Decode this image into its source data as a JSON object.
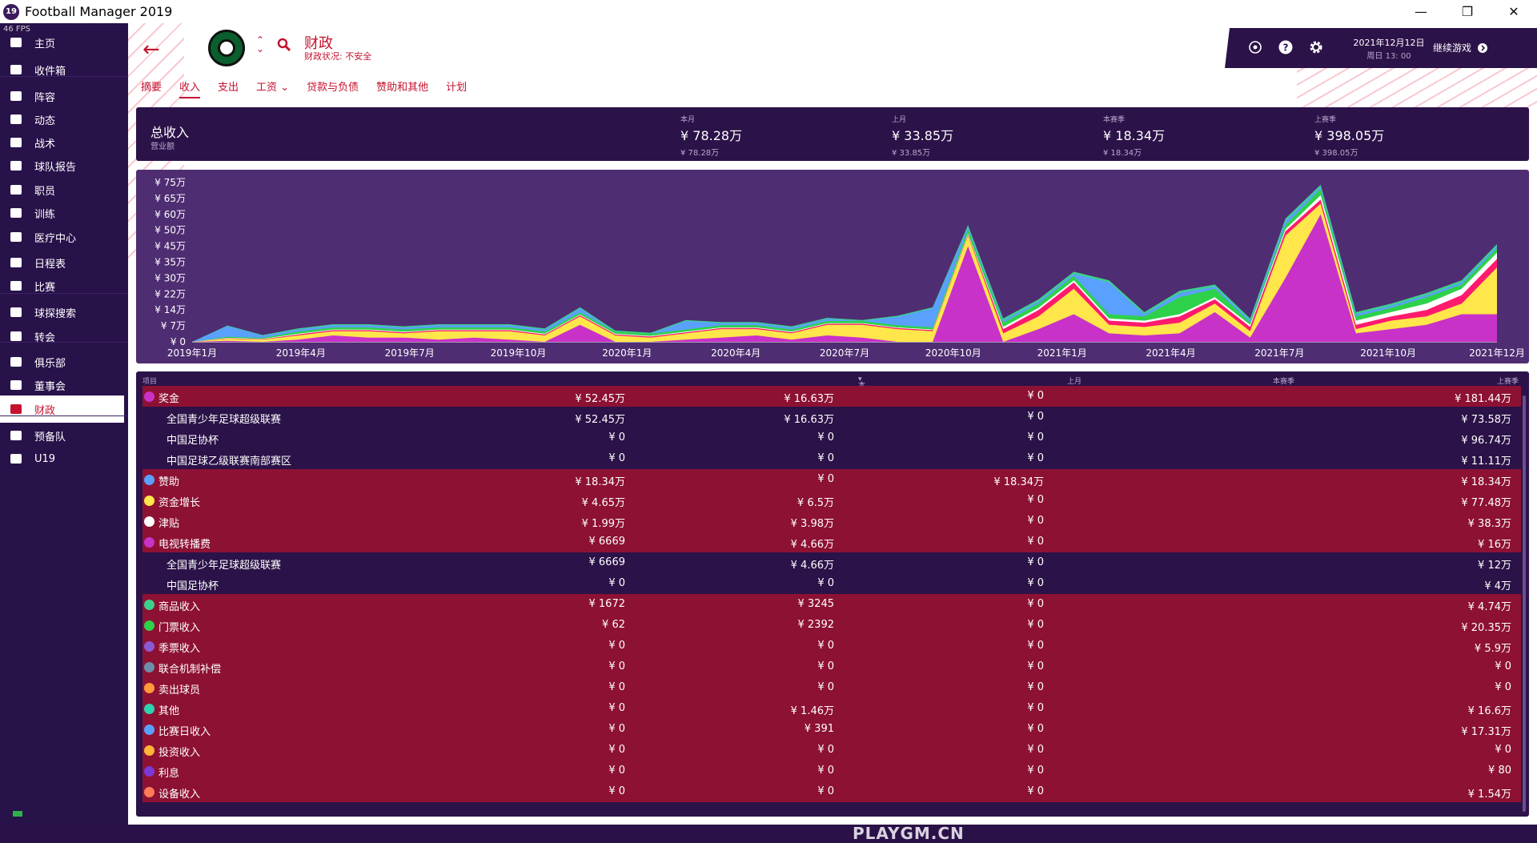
{
  "window": {
    "title": "Football Manager 2019",
    "logo_text": "19",
    "fps": "46 FPS"
  },
  "sidebar": {
    "items": [
      {
        "label": "主页",
        "icon": "home-icon"
      },
      {
        "label": "收件箱",
        "icon": "inbox-icon"
      },
      {
        "label": "阵容",
        "icon": "squad-icon"
      },
      {
        "label": "动态",
        "icon": "dynamics-icon"
      },
      {
        "label": "战术",
        "icon": "tactics-icon"
      },
      {
        "label": "球队报告",
        "icon": "report-icon"
      },
      {
        "label": "职员",
        "icon": "staff-icon"
      },
      {
        "label": "训练",
        "icon": "training-icon"
      },
      {
        "label": "医疗中心",
        "icon": "medical-icon"
      },
      {
        "label": "日程表",
        "icon": "calendar-icon"
      },
      {
        "label": "比赛",
        "icon": "trophy-icon"
      },
      {
        "label": "球探搜索",
        "icon": "search-icon"
      },
      {
        "label": "转会",
        "icon": "transfer-icon"
      },
      {
        "label": "俱乐部",
        "icon": "shield-icon"
      },
      {
        "label": "董事会",
        "icon": "board-icon"
      },
      {
        "label": "财政",
        "icon": "finance-icon"
      },
      {
        "label": "预备队",
        "icon": "reserve-icon"
      },
      {
        "label": "U19",
        "icon": "u19-icon"
      }
    ]
  },
  "header": {
    "title": "财政",
    "subtitle": "财政状况: 不安全"
  },
  "tabs": [
    "摘要",
    "收入",
    "支出",
    "工资",
    "贷款与负债",
    "赞助和其他",
    "计划"
  ],
  "topbar": {
    "date": "2021年12月12日",
    "time": "周日 13: 00",
    "continue_label": "继续游戏"
  },
  "summary": {
    "title": "总收入",
    "subtitle": "营业额",
    "columns": [
      {
        "label": "本月",
        "value": "¥ 78.28万",
        "small": "¥ 78.28万"
      },
      {
        "label": "上月",
        "value": "¥ 33.85万",
        "small": "¥ 33.85万"
      },
      {
        "label": "本赛季",
        "value": "¥ 18.34万",
        "small": "¥ 18.34万"
      },
      {
        "label": "上赛季",
        "value": "¥ 398.05万",
        "small": "¥ 398.05万"
      }
    ]
  },
  "chart_data": {
    "type": "area",
    "x_labels": [
      "2019年1月",
      "2019年4月",
      "2019年7月",
      "2019年10月",
      "2020年1月",
      "2020年4月",
      "2020年7月",
      "2020年10月",
      "2021年1月",
      "2021年4月",
      "2021年7月",
      "2021年10月",
      "2021年12月"
    ],
    "y_ticks": [
      "¥ 0",
      "¥ 7万",
      "¥ 14万",
      "¥ 22万",
      "¥ 30万",
      "¥ 35万",
      "¥ 45万",
      "¥ 50万",
      "¥ 60万",
      "¥ 65万",
      "¥ 75万"
    ],
    "ylim": [
      0,
      75
    ],
    "series_colors": [
      "#c832c8",
      "#ffe64a",
      "#ff1a6e",
      "#ffffff",
      "#2ed14a",
      "#5aa0ff",
      "#3bd18a"
    ],
    "series": [
      {
        "values": [
          0,
          0.5,
          0,
          1,
          3,
          2,
          2,
          1,
          2,
          1,
          0,
          8,
          0,
          0,
          1,
          2,
          3,
          1,
          3,
          2,
          0,
          0,
          45,
          0,
          6,
          13,
          4,
          3,
          4,
          14,
          2,
          30,
          60,
          4,
          6,
          8,
          13,
          13
        ]
      },
      {
        "values": [
          0,
          1,
          1,
          2,
          2,
          3,
          2,
          4,
          3,
          4,
          3,
          4,
          3,
          2,
          3,
          4,
          3,
          3,
          5,
          6,
          6,
          5,
          5,
          4,
          6,
          12,
          4,
          4,
          5,
          4,
          3,
          20,
          5,
          2,
          4,
          4,
          5,
          22
        ]
      },
      {
        "values": [
          0,
          0.2,
          0.2,
          0.5,
          0.5,
          0.5,
          0.5,
          0.5,
          0.5,
          0.5,
          0.5,
          0.5,
          0.5,
          0.5,
          0.5,
          0.5,
          0.5,
          0.5,
          0.5,
          0.5,
          0.5,
          0.5,
          0.5,
          2,
          3,
          3,
          2,
          2,
          3,
          2,
          2,
          2,
          2,
          2,
          2,
          3,
          4,
          4
        ]
      },
      {
        "values": [
          0,
          0.2,
          0.2,
          0.3,
          0.3,
          0.3,
          0.3,
          0.3,
          0.3,
          0.3,
          0.3,
          0.3,
          0.3,
          0.3,
          0.3,
          0.3,
          0.3,
          0.3,
          0.3,
          0.3,
          0.3,
          0.3,
          0.5,
          1,
          1,
          1,
          1,
          1,
          1,
          1,
          1,
          1,
          2,
          2,
          2,
          3,
          3,
          3
        ]
      },
      {
        "values": [
          0,
          0.5,
          0.5,
          1,
          1,
          1,
          1,
          1,
          1,
          1,
          1,
          1,
          1,
          1,
          1,
          1,
          1,
          1,
          1,
          1,
          1,
          1,
          2,
          2,
          2,
          2,
          2,
          2,
          8,
          4,
          1,
          2,
          3,
          2,
          2,
          3,
          2,
          2
        ]
      },
      {
        "values": [
          0,
          5,
          1,
          1,
          1,
          1,
          1,
          1,
          1,
          1,
          1,
          2,
          0,
          0,
          4,
          1,
          1,
          1,
          1,
          0,
          4,
          9,
          1,
          1,
          1,
          1,
          15,
          1,
          2,
          1,
          1,
          2,
          1,
          1,
          1,
          1,
          1,
          1
        ]
      },
      {
        "values": [
          0,
          0.3,
          0.3,
          0.5,
          0.5,
          0.5,
          0.5,
          0.5,
          0.5,
          0.5,
          0.5,
          0.5,
          0.5,
          0.5,
          0.5,
          0.5,
          0.5,
          0.5,
          0.5,
          0.5,
          0.5,
          0.5,
          1,
          1,
          1,
          1,
          1,
          1,
          1,
          1,
          1,
          1,
          1,
          1,
          1,
          1,
          1,
          1
        ]
      }
    ]
  },
  "table": {
    "headers": [
      "项目",
      "本月",
      "上月",
      "本赛季",
      "上赛季"
    ],
    "rows": [
      {
        "type": "main",
        "dot": "#c832c8",
        "name": "奖金",
        "c1": "¥ 52.45万",
        "c2": "¥ 16.63万",
        "c3": "¥ 0",
        "c4": "¥ 181.44万"
      },
      {
        "type": "sub",
        "name": "全国青少年足球超级联赛",
        "c1": "¥ 52.45万",
        "c2": "¥ 16.63万",
        "c3": "¥ 0",
        "c4": "¥ 73.58万"
      },
      {
        "type": "sub",
        "name": "中国足协杯",
        "c1": "¥ 0",
        "c2": "¥ 0",
        "c3": "¥ 0",
        "c4": "¥ 96.74万"
      },
      {
        "type": "sub",
        "name": "中国足球乙级联赛南部赛区",
        "c1": "¥ 0",
        "c2": "¥ 0",
        "c3": "¥ 0",
        "c4": "¥ 11.11万"
      },
      {
        "type": "main",
        "dot": "#5aa0ff",
        "name": "赞助",
        "c1": "¥ 18.34万",
        "c2": "¥ 0",
        "c3": "¥ 18.34万",
        "c4": "¥ 18.34万"
      },
      {
        "type": "main",
        "dot": "#ffe64a",
        "name": "资金增长",
        "c1": "¥ 4.65万",
        "c2": "¥ 6.5万",
        "c3": "¥ 0",
        "c4": "¥ 77.48万"
      },
      {
        "type": "main",
        "dot": "#ffffff",
        "name": "津贴",
        "c1": "¥ 1.99万",
        "c2": "¥ 3.98万",
        "c3": "¥ 0",
        "c4": "¥ 38.3万"
      },
      {
        "type": "main",
        "dot": "#c832c8",
        "name": "电视转播费",
        "c1": "¥ 6669",
        "c2": "¥ 4.66万",
        "c3": "¥ 0",
        "c4": "¥ 16万"
      },
      {
        "type": "sub",
        "name": "全国青少年足球超级联赛",
        "c1": "¥ 6669",
        "c2": "¥ 4.66万",
        "c3": "¥ 0",
        "c4": "¥ 12万"
      },
      {
        "type": "sub",
        "name": "中国足协杯",
        "c1": "¥ 0",
        "c2": "¥ 0",
        "c3": "¥ 0",
        "c4": "¥ 4万"
      },
      {
        "type": "main",
        "dot": "#3bd18a",
        "name": "商品收入",
        "c1": "¥ 1672",
        "c2": "¥ 3245",
        "c3": "¥ 0",
        "c4": "¥ 4.74万"
      },
      {
        "type": "main",
        "dot": "#2ed14a",
        "name": "门票收入",
        "c1": "¥ 62",
        "c2": "¥ 2392",
        "c3": "¥ 0",
        "c4": "¥ 20.35万"
      },
      {
        "type": "main",
        "dot": "#8a5ad6",
        "name": "季票收入",
        "c1": "¥ 0",
        "c2": "¥ 0",
        "c3": "¥ 0",
        "c4": "¥ 5.9万"
      },
      {
        "type": "main",
        "dot": "#6b8fa8",
        "name": "联合机制补偿",
        "c1": "¥ 0",
        "c2": "¥ 0",
        "c3": "¥ 0",
        "c4": "¥ 0"
      },
      {
        "type": "main",
        "dot": "#ff9a3a",
        "name": "卖出球员",
        "c1": "¥ 0",
        "c2": "¥ 0",
        "c3": "¥ 0",
        "c4": "¥ 0"
      },
      {
        "type": "main",
        "dot": "#2ed1b0",
        "name": "其他",
        "c1": "¥ 0",
        "c2": "¥ 1.46万",
        "c3": "¥ 0",
        "c4": "¥ 16.6万"
      },
      {
        "type": "main",
        "dot": "#5aa0ff",
        "name": "比赛日收入",
        "c1": "¥ 0",
        "c2": "¥ 391",
        "c3": "¥ 0",
        "c4": "¥ 17.31万"
      },
      {
        "type": "main",
        "dot": "#ffb43a",
        "name": "投资收入",
        "c1": "¥ 0",
        "c2": "¥ 0",
        "c3": "¥ 0",
        "c4": "¥ 0"
      },
      {
        "type": "main",
        "dot": "#7a3ad6",
        "name": "利息",
        "c1": "¥ 0",
        "c2": "¥ 0",
        "c3": "¥ 0",
        "c4": "¥ 80"
      },
      {
        "type": "main",
        "dot": "#ff7a5a",
        "name": "设备收入",
        "c1": "¥ 0",
        "c2": "¥ 0",
        "c3": "¥ 0",
        "c4": "¥ 1.54万"
      }
    ]
  },
  "watermark": "PLAYGM.CN"
}
